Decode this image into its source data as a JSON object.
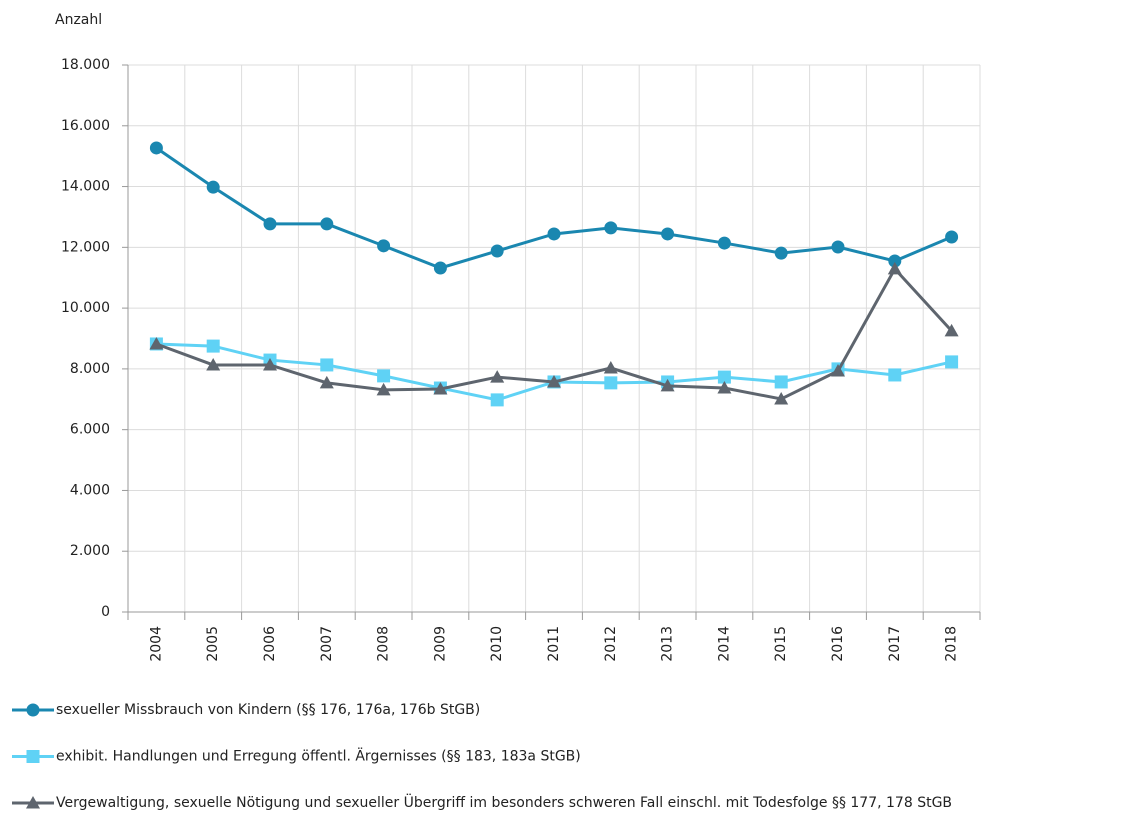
{
  "chart_data": {
    "type": "line",
    "y_axis_label": "Anzahl",
    "categories": [
      "2004",
      "2005",
      "2006",
      "2007",
      "2008",
      "2009",
      "2010",
      "2011",
      "2012",
      "2013",
      "2014",
      "2015",
      "2016",
      "2017",
      "2018"
    ],
    "series": [
      {
        "name": "sexueller Missbrauch von Kindern (§§ 176, 176a, 176b StGB)",
        "color": "#1a87b0",
        "marker": "circle",
        "values": [
          15270,
          13980,
          12770,
          12770,
          12050,
          11320,
          11880,
          12440,
          12640,
          12440,
          12140,
          11810,
          12010,
          11550,
          12340
        ]
      },
      {
        "name": "exhibit. Handlungen und Erregung öffentl. Ärgernisses (§§ 183, 183a StGB)",
        "color": "#5fd2f5",
        "marker": "square",
        "values": [
          8820,
          8750,
          8290,
          8130,
          7770,
          7370,
          6980,
          7570,
          7540,
          7570,
          7730,
          7570,
          8000,
          7800,
          8230
        ]
      },
      {
        "name": "Vergewaltigung, sexuelle Nötigung und sexueller Übergriff im besonders schweren Fall einschl. mit Todesfolge §§ 177, 178 StGB",
        "color": "#5e656e",
        "marker": "triangle",
        "values": [
          8820,
          8130,
          8130,
          7540,
          7310,
          7340,
          7730,
          7570,
          8030,
          7440,
          7370,
          7010,
          7930,
          11290,
          9250
        ]
      }
    ],
    "ylim": [
      0,
      18000
    ],
    "yticks": [
      0,
      {
        "value": 2000,
        "label": "2.000"
      },
      {
        "value": 4000,
        "label": "4.000"
      },
      {
        "value": 6000,
        "label": "6.000"
      },
      {
        "value": 8000,
        "label": "8.000"
      },
      {
        "value": 10000,
        "label": "10.000"
      },
      {
        "value": 12000,
        "label": "12.000"
      },
      {
        "value": 14000,
        "label": "14.000"
      },
      {
        "value": 16000,
        "label": "16.000"
      },
      {
        "value": 18000,
        "label": "18.000"
      }
    ],
    "grid": true
  }
}
